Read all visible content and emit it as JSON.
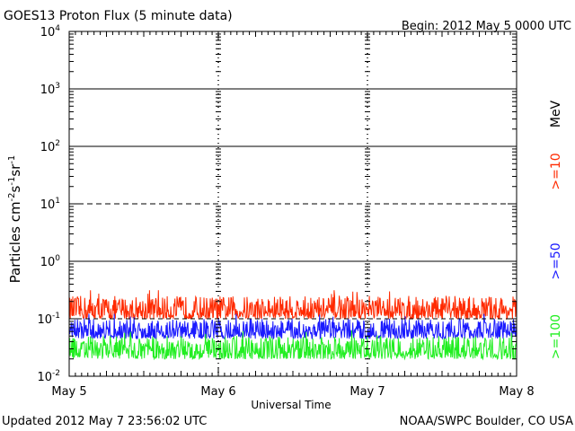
{
  "header": {
    "title": "GOES13 Proton Flux (5 minute data)",
    "begin": "Begin: 2012 May 5 0000 UTC"
  },
  "footer": {
    "updated": "Updated 2012 May  7 23:56:02 UTC",
    "credit": "NOAA/SWPC Boulder, CO USA"
  },
  "legend": {
    "unit": "MeV",
    "entries": [
      {
        "label": ">=10",
        "color": "#ff2a00"
      },
      {
        "label": ">=50",
        "color": "#1a1aff"
      },
      {
        "label": ">=100",
        "color": "#22ee22"
      }
    ]
  },
  "chart_data": {
    "type": "line",
    "title": "GOES13 Proton Flux (5 minute data)",
    "xlabel": "Universal Time",
    "ylabel_parts": [
      "Particles cm",
      "-2",
      "s",
      "-1",
      "sr",
      "-1"
    ],
    "y_scale": "log",
    "ylim": [
      0.01,
      10000
    ],
    "y_ticks": [
      {
        "value": 0.01,
        "base": "10",
        "exp": "-2"
      },
      {
        "value": 0.1,
        "base": "10",
        "exp": "-1"
      },
      {
        "value": 1,
        "base": "10",
        "exp": "0"
      },
      {
        "value": 10,
        "base": "10",
        "exp": "1"
      },
      {
        "value": 100,
        "base": "10",
        "exp": "2"
      },
      {
        "value": 1000,
        "base": "10",
        "exp": "3"
      },
      {
        "value": 10000,
        "base": "10",
        "exp": "4"
      }
    ],
    "x_ticks": [
      "May 5",
      "May 6",
      "May 7",
      "May 8"
    ],
    "xlim_days": [
      0,
      3
    ],
    "threshold_lines": [
      {
        "value": 1,
        "style": "solid"
      },
      {
        "value": 10,
        "style": "dashed"
      },
      {
        "value": 100,
        "style": "solid"
      },
      {
        "value": 1000,
        "style": "solid"
      }
    ],
    "reference_line": {
      "value": 0.1,
      "style": "dashed"
    },
    "series": [
      {
        "name": ">=10",
        "color": "#ff2a00",
        "typical_range": [
          0.1,
          0.25
        ]
      },
      {
        "name": ">=50",
        "color": "#1a1aff",
        "typical_range": [
          0.045,
          0.1
        ]
      },
      {
        "name": ">=100",
        "color": "#22ee22",
        "typical_range": [
          0.02,
          0.05
        ]
      }
    ]
  }
}
